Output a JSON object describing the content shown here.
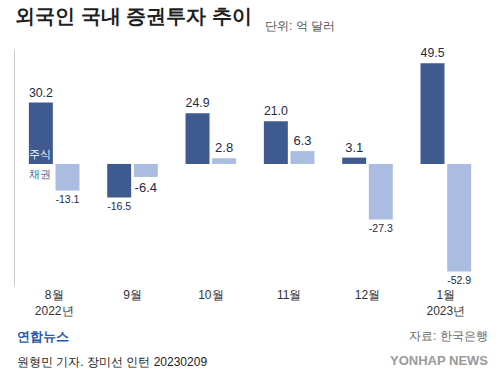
{
  "chart_data": {
    "type": "bar",
    "title": "외국인 국내 증권투자 추이",
    "subtitle": "단위: 억 달러",
    "categories": [
      "8월\n2022년",
      "9월",
      "10월",
      "11월",
      "12월",
      "1월\n2023년"
    ],
    "series": [
      {
        "name": "주식",
        "color": "#3e5a8f",
        "values": [
          30.2,
          -16.5,
          24.9,
          21.0,
          3.1,
          49.5
        ],
        "value_labels": [
          "30.2",
          "-16.5",
          "24.9",
          "21.0",
          "3.1",
          "49.5"
        ]
      },
      {
        "name": "채권",
        "color": "#aabde0",
        "values": [
          -13.1,
          -6.4,
          2.8,
          6.3,
          -27.3,
          -52.9
        ]
      }
    ],
    "ylim": [
      -60,
      56
    ],
    "data_labels": true,
    "tick_labels": "x",
    "grid": false,
    "source": "자료: 한국은행",
    "logo": "연합뉴스",
    "credit": "원형민 기자. 장미선 인턴 20230209",
    "watermark": "YONHAP NEWS"
  }
}
